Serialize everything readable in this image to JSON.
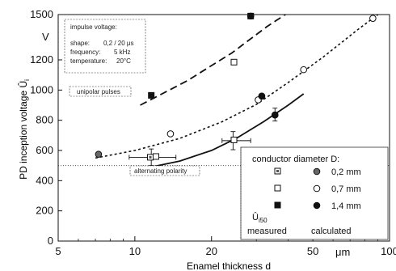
{
  "chart_data": {
    "type": "scatter",
    "xlabel": "Enamel thickness d",
    "ylabel": "PD inception voltage Û",
    "ylabel_sub": "i",
    "x_unit": "μm",
    "y_unit": "V",
    "xscale": "log",
    "xlim": [
      5,
      100
    ],
    "ylim": [
      0,
      1500
    ],
    "x_ticks": [
      5,
      10,
      20,
      50,
      100
    ],
    "y_ticks": [
      0,
      200,
      400,
      600,
      800,
      1000,
      1200,
      1500
    ],
    "x_tick_labels": [
      "5",
      "10",
      "20",
      "50",
      "100"
    ],
    "y_tick_labels": [
      "0",
      "200",
      "400",
      "600",
      "800",
      "1000",
      "1200",
      "1500"
    ],
    "info_box": {
      "title": "impulse voltage:",
      "rows": [
        {
          "k": "shape:",
          "v": "0,2 / 20 μs"
        },
        {
          "k": "frequency:",
          "v": "5 kHz"
        },
        {
          "k": "temperature:",
          "v": "20°C"
        }
      ]
    },
    "annotations": {
      "unipolar": "unipolar pulses",
      "alternating": "alternating polarity"
    },
    "legend": {
      "title": "conductor diameter D:",
      "sizes": [
        "0,2 mm",
        "0,7 mm",
        "1,4 mm"
      ],
      "col_measured_symbol": "Û",
      "col_measured_sub": "i50",
      "col_measured": "measured",
      "col_calculated": "calculated"
    },
    "reference_level": 500,
    "series": [
      {
        "name": "0,2 mm",
        "group": "measured",
        "points": [
          [
            11.5,
            555
          ]
        ]
      },
      {
        "name": "0,7 mm",
        "group": "measured",
        "points": [
          [
            12.1,
            560
          ],
          [
            24.5,
            670
          ],
          [
            24.5,
            1185
          ]
        ]
      },
      {
        "name": "1,4 mm",
        "group": "measured",
        "points": [
          [
            11.6,
            965
          ],
          [
            28.5,
            1490
          ]
        ]
      },
      {
        "name": "0,2 mm",
        "group": "calculated",
        "points": [
          [
            7.2,
            575
          ],
          [
            31.5,
            960
          ],
          [
            35.5,
            835
          ]
        ]
      },
      {
        "name": "0,7 mm",
        "group": "calculated",
        "points": [
          [
            13.8,
            710
          ],
          [
            30.5,
            935
          ],
          [
            46,
            1135
          ],
          [
            86,
            1475
          ]
        ]
      },
      {
        "name": "1,4 mm",
        "group": "calculated",
        "points": [
          [
            31.5,
            960
          ],
          [
            35.5,
            835
          ],
          [
            28.5,
            1490
          ]
        ]
      }
    ],
    "curves": [
      {
        "style": "dashed",
        "points": [
          [
            10.5,
            900
          ],
          [
            16,
            1060
          ],
          [
            24,
            1245
          ],
          [
            33,
            1420
          ],
          [
            39,
            1500
          ]
        ]
      },
      {
        "style": "dotted",
        "points": [
          [
            7,
            550
          ],
          [
            10,
            600
          ],
          [
            15,
            680
          ],
          [
            22,
            790
          ],
          [
            30,
            905
          ],
          [
            40,
            1050
          ],
          [
            55,
            1220
          ],
          [
            75,
            1400
          ],
          [
            90,
            1500
          ]
        ]
      },
      {
        "style": "solid",
        "points": [
          [
            10.5,
            475
          ],
          [
            15,
            530
          ],
          [
            20,
            600
          ],
          [
            25,
            680
          ],
          [
            32,
            790
          ],
          [
            40,
            900
          ],
          [
            46,
            975
          ]
        ]
      }
    ],
    "error_bars": [
      {
        "x": 11.6,
        "y": 555,
        "xerr": [
          9.5,
          14.5
        ],
        "yerr": [
          500,
          610
        ]
      },
      {
        "x": 24.3,
        "y": 665,
        "xerr": [
          22,
          28.5
        ],
        "yerr": [
          605,
          725
        ]
      },
      {
        "x": 35.5,
        "y": 840,
        "xerr": [
          35,
          36
        ],
        "yerr": [
          795,
          880
        ]
      }
    ]
  }
}
